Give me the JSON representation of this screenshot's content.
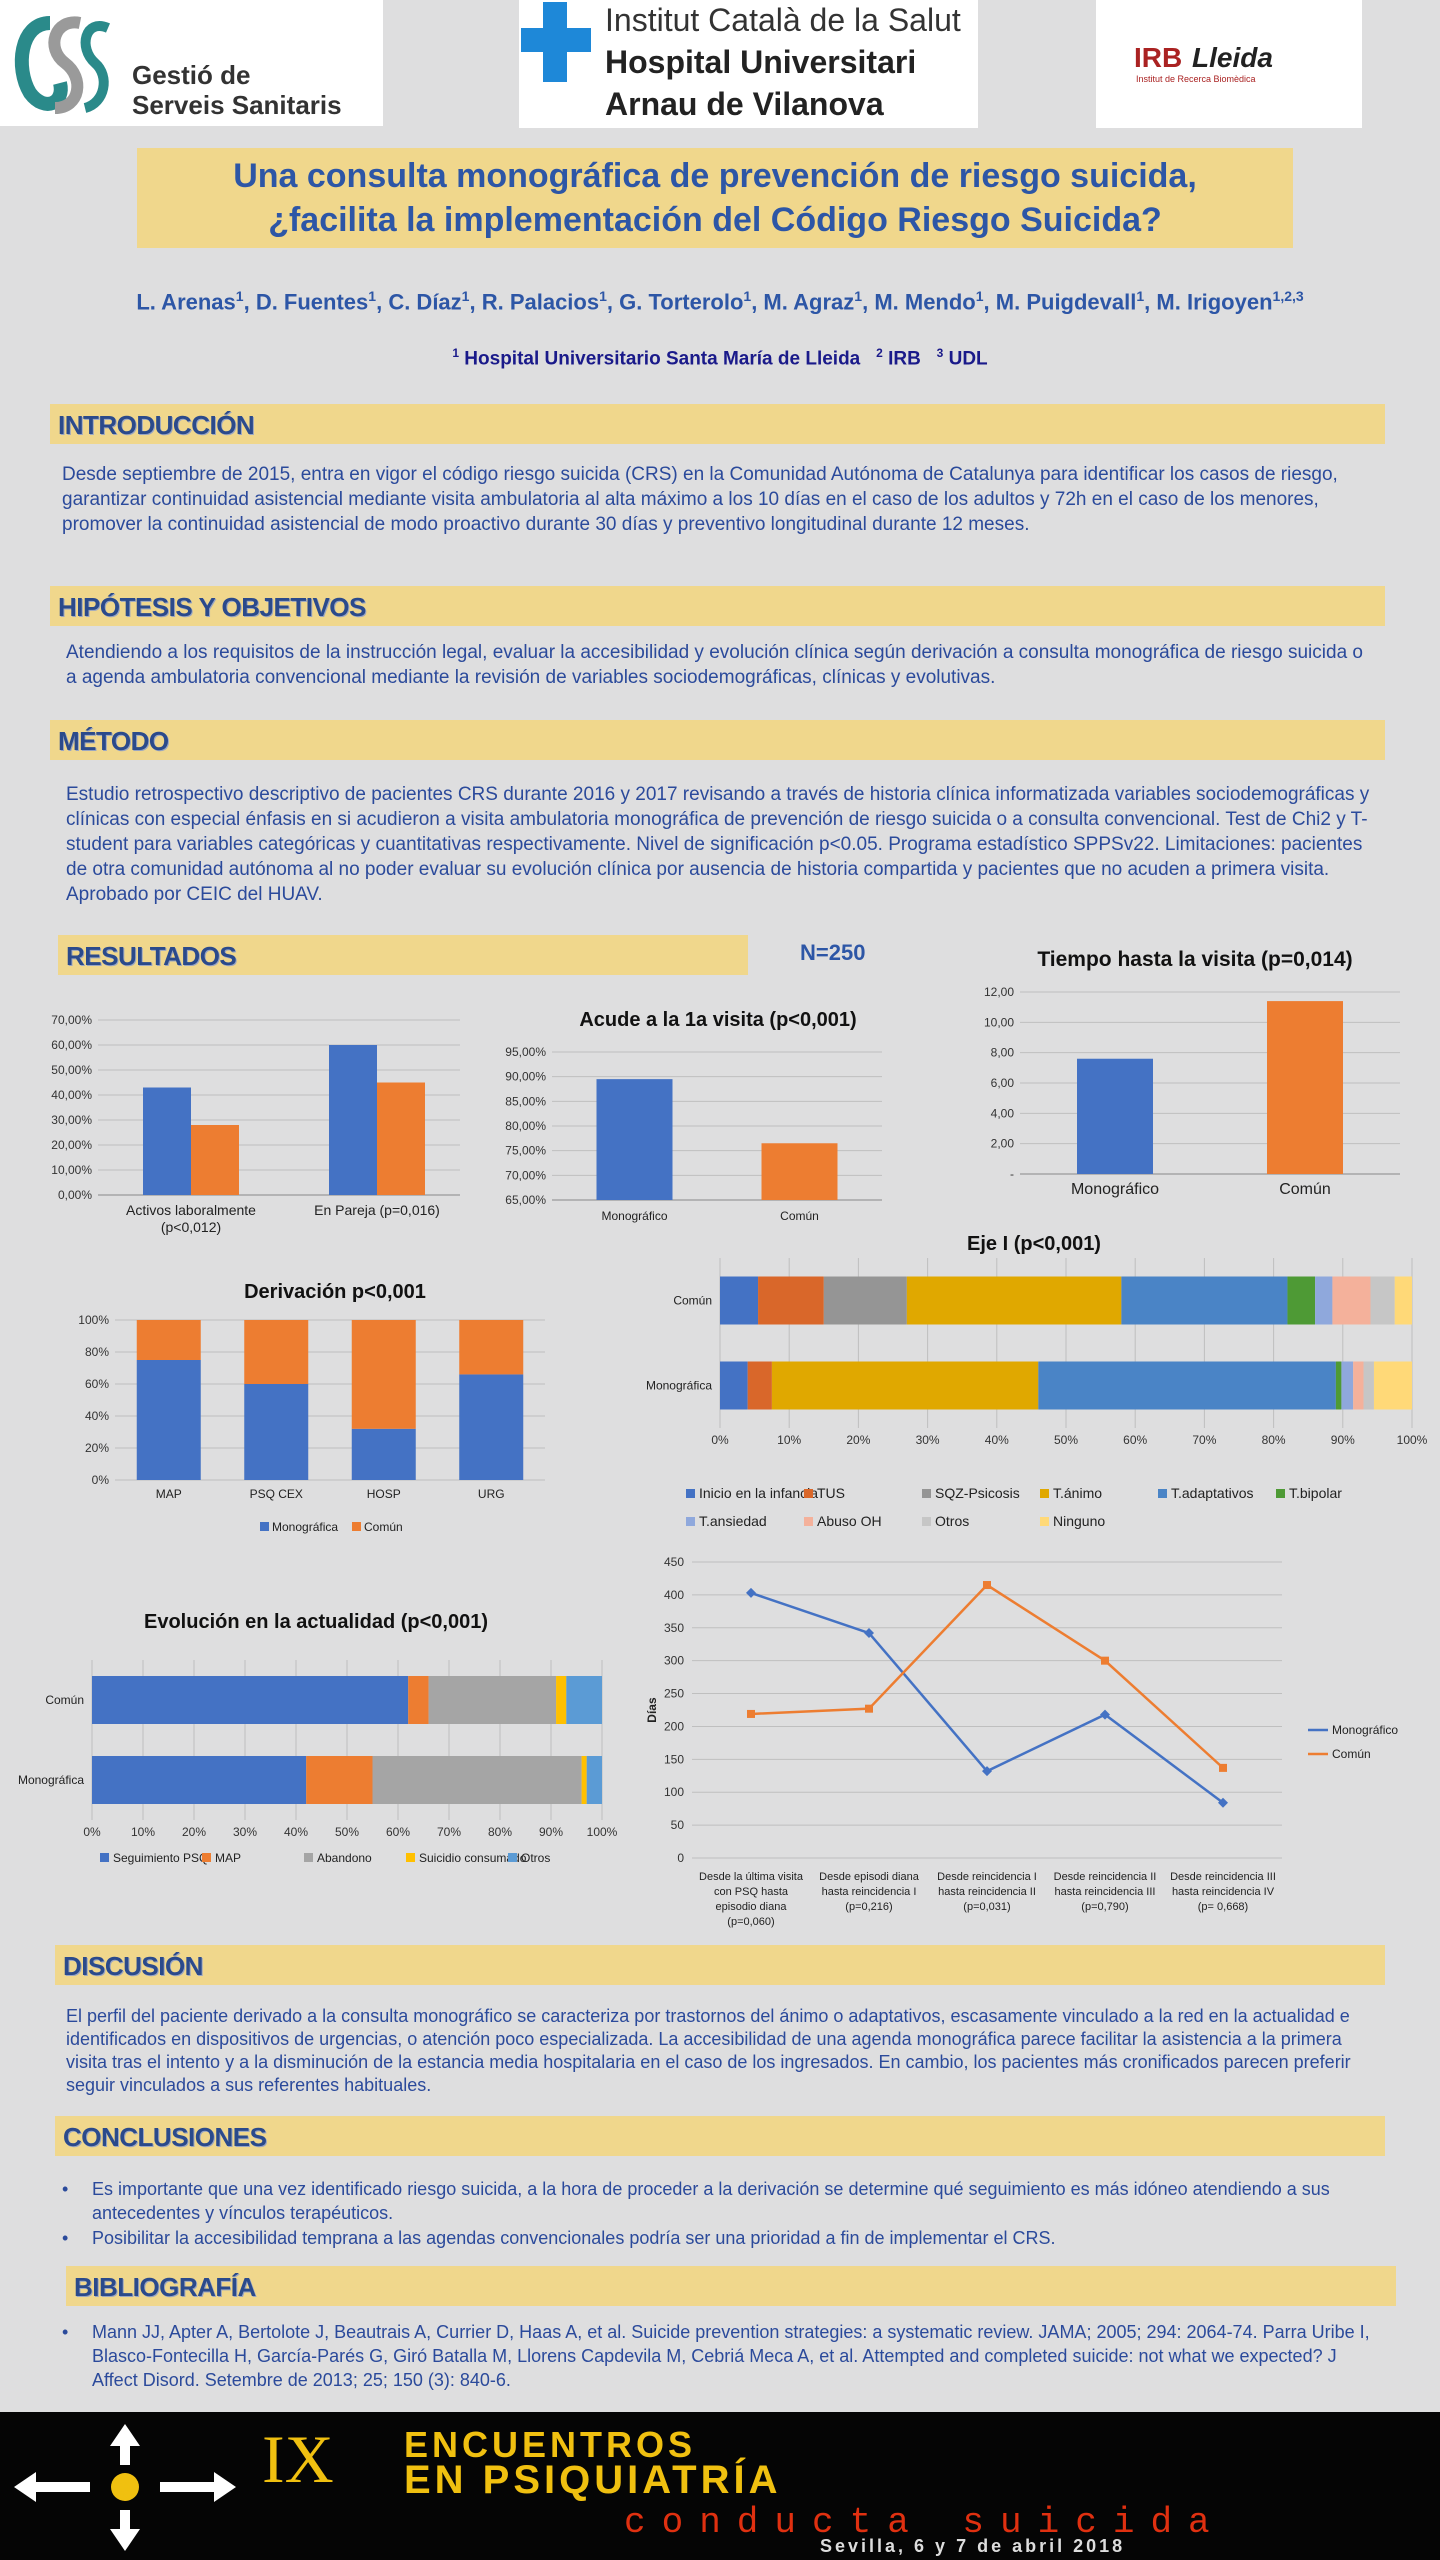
{
  "header": {
    "logo_left_line1": "Gestió de",
    "logo_left_line2": "Serveis Sanitaris",
    "logo_center_line1": "Institut Català de la Salut",
    "logo_center_line2": "Hospital Universitari",
    "logo_center_line3": "Arnau de Vilanova",
    "logo_right_irb": "IRB",
    "logo_right_lleida": "Lleida",
    "logo_right_sub": "Institut de Recerca Biomèdica"
  },
  "title_line1": "Una consulta monográfica de prevención de riesgo suicida,",
  "title_line2": "¿facilita la implementación del Código Riesgo Suicida?",
  "authors": [
    {
      "name": "L. Arenas",
      "sup": "1"
    },
    {
      "name": "D. Fuentes",
      "sup": "1"
    },
    {
      "name": "C. Díaz",
      "sup": "1"
    },
    {
      "name": "R. Palacios",
      "sup": "1"
    },
    {
      "name": "G. Torterolo",
      "sup": "1"
    },
    {
      "name": "M. Agraz",
      "sup": "1"
    },
    {
      "name": "M. Mendo",
      "sup": "1"
    },
    {
      "name": "M. Puigdevall",
      "sup": "1"
    },
    {
      "name": "M. Irigoyen",
      "sup": "1,2,3"
    }
  ],
  "affiliations": {
    "a1_sup": "1",
    "a1": "Hospital Universitario Santa María de Lleida",
    "a2_sup": "2",
    "a2": "IRB",
    "a3_sup": "3",
    "a3": "UDL"
  },
  "sections": {
    "intro_title": "INTRODUCCIÓN",
    "intro_text": "Desde septiembre de 2015, entra en vigor el código riesgo suicida (CRS) en la Comunidad Autónoma de Catalunya para identificar los casos de riesgo, garantizar continuidad asistencial mediante visita ambulatoria al alta máximo a los 10 días en el caso de los adultos y 72h en el caso de los menores, promover la continuidad asistencial de modo proactivo durante 30 días y preventivo longitudinal durante 12 meses.",
    "hyp_title": "HIPÓTESIS Y OBJETIVOS",
    "hyp_text": "Atendiendo a los requisitos de la instrucción legal, evaluar la accesibilidad y evolución clínica según derivación a consulta monográfica de riesgo suicida o a agenda ambulatoria convencional mediante la revisión de variables sociodemográficas, clínicas y evolutivas.",
    "met_title": "MÉTODO",
    "met_text": "Estudio retrospectivo descriptivo de pacientes CRS durante 2016 y 2017 revisando a través de historia clínica informatizada variables sociodemográficas y clínicas con especial énfasis en si acudieron a visita ambulatoria monográfica de prevención de riesgo suicida o a consulta convencional. Test de Chi2 y T-student para variables categóricas y cuantitativas respectivamente. Nivel de significación p<0.05. Programa estadístico SPPSv22. Limitaciones: pacientes de otra comunidad autónoma al no poder evaluar su evolución clínica por ausencia de historia compartida y pacientes que no acuden a primera visita. Aprobado por CEIC del HUAV.",
    "res_title": "RESULTADOS",
    "n_label": "N=250",
    "disc_title": "DISCUSIÓN",
    "disc_text": "El perfil del paciente derivado a la consulta monográfico se caracteriza por trastornos del ánimo o adaptativos, escasamente vinculado a la red en la actualidad e identificados en dispositivos de urgencias, o atención poco especializada. La accesibilidad de una agenda monográfica parece facilitar la asistencia a la primera visita tras el intento y a la disminución de la estancia media hospitalaria en el caso de los ingresados. En cambio, los pacientes más cronificados parecen preferir seguir vinculados a sus referentes habituales.",
    "conc_title": "CONCLUSIONES",
    "conc_items": [
      "Es importante que una vez identificado riesgo suicida, a la hora de proceder a la derivación se determine qué seguimiento es más idóneo atendiendo a sus antecedentes y vínculos terapéuticos.",
      "Posibilitar la accesibilidad temprana a las agendas convencionales podría ser una prioridad a fin de implementar el CRS."
    ],
    "bib_title": "BIBLIOGRAFÍA",
    "bib_items": [
      "Mann JJ, Apter A, Bertolote J, Beautrais A, Currier D, Haas A, et al. Suicide prevention strategies: a systematic review. JAMA; 2005; 294: 2064-74. Parra Uribe I, Blasco-Fontecilla H, García-Parés G, Giró Batalla M, Llorens Capdevila M, Cebriá Meca A, et al. Attempted and completed suicide: not what we expected? J Affect Disord. Setembre de 2013; 25; 150 (3): 840-6."
    ]
  },
  "footer": {
    "roman": "IX",
    "line1": "ENCUENTROS",
    "line2": "EN PSIQUIATRÍA",
    "line3": "conducta suicida",
    "line4": "Sevilla, 6 y 7 de abril 2018"
  },
  "colors": {
    "blue": "#4472c4",
    "orange": "#ed7d31",
    "band": "#f0d78c",
    "text": "#2b4a9b"
  },
  "chart_data": [
    {
      "id": "activos",
      "type": "bar",
      "title": "",
      "categories": [
        "Activos laboralmente (p<0,012)",
        "En Pareja (p=0,016)"
      ],
      "series": [
        {
          "values": [
            43,
            60
          ],
          "color": "#4472c4"
        },
        {
          "values": [
            28,
            45
          ],
          "color": "#ed7d31"
        }
      ],
      "ylim": [
        0,
        70
      ],
      "yticks": [
        "0,00%",
        "10,00%",
        "20,00%",
        "30,00%",
        "40,00%",
        "50,00%",
        "60,00%",
        "70,00%"
      ]
    },
    {
      "id": "acude",
      "type": "bar",
      "title": "Acude a la 1a visita (p<0,001)",
      "categories": [
        "Monográfico",
        "Común"
      ],
      "values": [
        89.5,
        76.5
      ],
      "colors": [
        "#4472c4",
        "#ed7d31"
      ],
      "ylim": [
        65,
        95
      ],
      "yticks": [
        "65,00%",
        "70,00%",
        "75,00%",
        "80,00%",
        "85,00%",
        "90,00%",
        "95,00%"
      ]
    },
    {
      "id": "tiempo",
      "type": "bar",
      "title": "Tiempo hasta la visita (p=0,014)",
      "categories": [
        "Monográfico",
        "Común"
      ],
      "values": [
        7.6,
        11.4
      ],
      "colors": [
        "#4472c4",
        "#ed7d31"
      ],
      "ylim": [
        0,
        12
      ],
      "yticks": [
        "-",
        "2,00",
        "4,00",
        "6,00",
        "8,00",
        "10,00",
        "12,00"
      ]
    },
    {
      "id": "derivacion",
      "type": "bar",
      "stacked": true,
      "title": "Derivación p<0,001",
      "categories": [
        "MAP",
        "PSQ CEX",
        "HOSP",
        "URG"
      ],
      "series": [
        {
          "name": "Monográfica",
          "values": [
            75,
            60,
            32,
            66
          ],
          "color": "#4472c4"
        },
        {
          "name": "Común",
          "values": [
            25,
            40,
            68,
            34
          ],
          "color": "#ed7d31"
        }
      ],
      "yticks": [
        "0%",
        "20%",
        "40%",
        "60%",
        "80%",
        "100%"
      ]
    },
    {
      "id": "eje",
      "type": "bar",
      "stacked": true,
      "horizontal": true,
      "title": "Eje I (p<0,001)",
      "categories": [
        "Común",
        "Monográfica"
      ],
      "series": [
        {
          "name": "Inicio en la infancia",
          "values": [
            5.5,
            4
          ],
          "color": "#4472c4"
        },
        {
          "name": "TUS",
          "values": [
            9.5,
            3.5
          ],
          "color": "#d9672a"
        },
        {
          "name": "SQZ-Psicosis",
          "values": [
            12,
            0
          ],
          "color": "#959595"
        },
        {
          "name": "T.ánimo",
          "values": [
            31,
            38.5
          ],
          "color": "#e0a800"
        },
        {
          "name": "T.adaptativos",
          "values": [
            24,
            43
          ],
          "color": "#4a84c6"
        },
        {
          "name": "T.bipolar",
          "values": [
            4,
            0.8
          ],
          "color": "#4e9a35"
        },
        {
          "name": "T.ansiedad",
          "values": [
            2.5,
            1.7
          ],
          "color": "#8fa8dc"
        },
        {
          "name": "Abuso OH",
          "values": [
            5.5,
            1.5
          ],
          "color": "#f4b19b"
        },
        {
          "name": "Otros",
          "values": [
            3.5,
            1.5
          ],
          "color": "#c6c6c6"
        },
        {
          "name": "Ninguno",
          "values": [
            2.5,
            5.5
          ],
          "color": "#ffd978"
        }
      ],
      "xticks": [
        "0%",
        "10%",
        "20%",
        "30%",
        "40%",
        "50%",
        "60%",
        "70%",
        "80%",
        "90%",
        "100%"
      ]
    },
    {
      "id": "evolucion",
      "type": "bar",
      "stacked": true,
      "horizontal": true,
      "title": "Evolución en la actualidad (p<0,001)",
      "categories": [
        "Común",
        "Monográfica"
      ],
      "series": [
        {
          "name": "Seguimiento PSQ",
          "values": [
            62,
            42
          ],
          "color": "#4472c4"
        },
        {
          "name": "MAP",
          "values": [
            4,
            13
          ],
          "color": "#ed7d31"
        },
        {
          "name": "Abandono",
          "values": [
            25,
            41
          ],
          "color": "#a5a5a5"
        },
        {
          "name": "Suicidio consumado",
          "values": [
            2,
            1
          ],
          "color": "#ffc000"
        },
        {
          "name": "Otros",
          "values": [
            7,
            3
          ],
          "color": "#5b9bd5"
        }
      ],
      "xticks": [
        "0%",
        "10%",
        "20%",
        "30%",
        "40%",
        "50%",
        "60%",
        "70%",
        "80%",
        "90%",
        "100%"
      ]
    },
    {
      "id": "dias",
      "type": "line",
      "ylabel": "Días",
      "categories": [
        [
          "Desde la última visita",
          "con PSQ hasta",
          "episodio diana",
          "(p=0,060)"
        ],
        [
          "Desde episodi diana",
          "hasta reincidencia I",
          "(p=0,216)"
        ],
        [
          "Desde reincidencia I",
          "hasta reincidencia II",
          "(p=0,031)"
        ],
        [
          "Desde reincidencia II",
          "hasta reincidencia III",
          "(p=0,790)"
        ],
        [
          "Desde reincidencia III",
          "hasta reincidencia IV",
          "(p= 0,668)"
        ]
      ],
      "series": [
        {
          "name": "Monográfico",
          "values": [
            403,
            342,
            132,
            218,
            84
          ],
          "color": "#4472c4"
        },
        {
          "name": "Común",
          "values": [
            219,
            227,
            415,
            300,
            137
          ],
          "color": "#ed7d31"
        }
      ],
      "ylim": [
        0,
        450
      ],
      "yticks": [
        "0",
        "50",
        "100",
        "150",
        "200",
        "250",
        "300",
        "350",
        "400",
        "450"
      ]
    }
  ]
}
